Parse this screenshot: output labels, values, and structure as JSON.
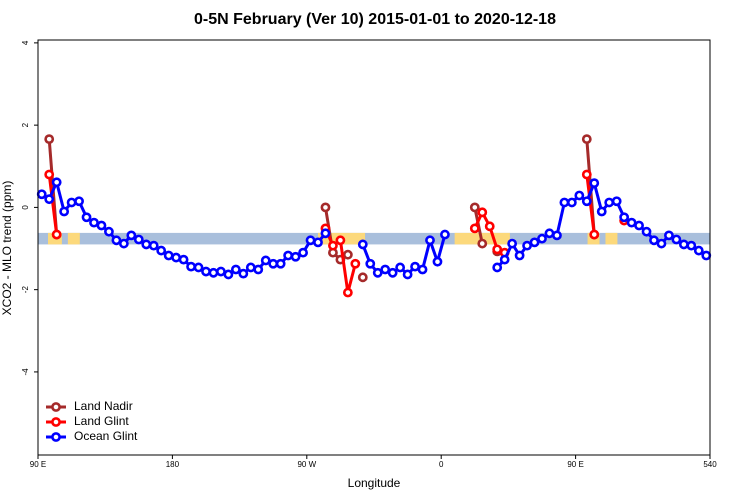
{
  "chart_data": {
    "type": "line",
    "title": "0-5N February (Ver 10)   2015-01-01 to 2020-12-18",
    "xlabel": "Longitude",
    "ylabel": "XCO2 - MLO trend (ppm)",
    "xlim": [
      90,
      540
    ],
    "ylim": [
      -6.02,
      4.07
    ],
    "xticks": [
      {
        "value": 90,
        "label": "90 E"
      },
      180,
      {
        "value": 270,
        "label": "90 W"
      },
      {
        "value": 360,
        "label": "0"
      },
      {
        "value": 450,
        "label": "90 E"
      },
      540
    ],
    "yticks": [
      -4,
      -2,
      0,
      2,
      4
    ],
    "legend": "bottomleft",
    "band": {
      "color": "#a9bfdc",
      "land_color": "#fcd97c",
      "ylim": [
        -0.9,
        -0.62
      ],
      "land_segments": [
        [
          96.7,
          106
        ],
        [
          110,
          118
        ],
        [
          277.5,
          309
        ],
        [
          369,
          406
        ],
        [
          458,
          466
        ],
        [
          470,
          478
        ]
      ]
    },
    "x": [
      92.5,
      97.5,
      102.5,
      107.5,
      112.5,
      117.5,
      122.5,
      127.5,
      132.5,
      137.5,
      142.5,
      147.5,
      152.5,
      157.5,
      162.5,
      167.5,
      172.5,
      177.5,
      182.5,
      187.5,
      192.5,
      197.5,
      202.5,
      207.5,
      212.5,
      217.5,
      222.5,
      227.5,
      232.5,
      237.5,
      242.5,
      247.5,
      252.5,
      257.5,
      262.5,
      267.5,
      272.5,
      277.5,
      282.5,
      287.5,
      292.5,
      297.5,
      302.5,
      307.5,
      312.5,
      317.5,
      322.5,
      327.5,
      332.5,
      337.5,
      342.5,
      347.5,
      352.5,
      357.5,
      362.5,
      367.5,
      372.5,
      377.5,
      382.5,
      387.5,
      392.5,
      397.5,
      402.5,
      407.5,
      412.5,
      417.5,
      422.5,
      427.5,
      432.5,
      437.5,
      442.5,
      447.5,
      452.5,
      457.5,
      462.5,
      467.5,
      472.5,
      477.5,
      482.5,
      487.5,
      492.5,
      497.5,
      502.5,
      507.5,
      512.5,
      517.5,
      522.5,
      527.5,
      532.5,
      537.5
    ],
    "series": [
      {
        "name": "Land Nadir",
        "color": "#a52a2a",
        "values": [
          null,
          1.66,
          -0.66,
          null,
          null,
          null,
          null,
          null,
          null,
          null,
          null,
          null,
          null,
          null,
          null,
          null,
          null,
          null,
          null,
          null,
          null,
          null,
          null,
          null,
          null,
          null,
          null,
          null,
          null,
          null,
          null,
          null,
          null,
          null,
          null,
          null,
          null,
          null,
          0,
          -1.1,
          -1.27,
          -1.15,
          null,
          -1.7,
          null,
          null,
          null,
          null,
          null,
          null,
          null,
          null,
          null,
          null,
          null,
          null,
          null,
          null,
          0,
          -0.88,
          null,
          -1.07,
          null,
          null,
          null,
          null,
          null,
          null,
          null,
          null,
          null,
          null,
          null,
          1.66,
          -0.66,
          null,
          null,
          null,
          null,
          null,
          null,
          null,
          null,
          null,
          null,
          null,
          null,
          null,
          null,
          null
        ]
      },
      {
        "name": "Land Glint",
        "color": "#ff0000",
        "values": [
          null,
          0.8,
          -0.66,
          null,
          null,
          null,
          null,
          null,
          null,
          null,
          null,
          null,
          null,
          null,
          null,
          null,
          null,
          null,
          null,
          null,
          null,
          null,
          null,
          null,
          null,
          null,
          null,
          null,
          null,
          null,
          null,
          null,
          null,
          null,
          null,
          null,
          null,
          null,
          -0.51,
          -0.93,
          -0.8,
          -2.07,
          -1.37,
          null,
          null,
          null,
          null,
          null,
          null,
          null,
          null,
          null,
          null,
          null,
          null,
          null,
          null,
          null,
          -0.51,
          -0.12,
          -0.46,
          -1.02,
          -1.1,
          null,
          null,
          null,
          null,
          null,
          null,
          null,
          null,
          null,
          null,
          0.8,
          -0.66,
          null,
          null,
          null,
          -0.32,
          null,
          null,
          null,
          null,
          null,
          null,
          null,
          null,
          null,
          null,
          null
        ]
      },
      {
        "name": "Ocean Glint",
        "color": "#0000ff",
        "values": [
          0.32,
          0.2,
          0.61,
          -0.1,
          0.12,
          0.15,
          -0.24,
          -0.37,
          -0.44,
          -0.59,
          -0.8,
          -0.88,
          -0.68,
          -0.78,
          -0.9,
          -0.93,
          -1.05,
          -1.17,
          -1.22,
          -1.27,
          -1.44,
          -1.46,
          -1.56,
          -1.59,
          -1.56,
          -1.63,
          -1.51,
          -1.61,
          -1.46,
          -1.51,
          -1.29,
          -1.37,
          -1.37,
          -1.17,
          -1.2,
          -1.1,
          -0.8,
          -0.85,
          -0.63,
          null,
          null,
          null,
          null,
          -0.9,
          -1.37,
          -1.59,
          -1.51,
          -1.59,
          -1.46,
          -1.63,
          -1.44,
          -1.51,
          -0.8,
          -1.32,
          -0.66,
          null,
          null,
          null,
          null,
          null,
          null,
          -1.46,
          -1.27,
          -0.88,
          -1.17,
          -0.93,
          -0.85,
          -0.76,
          -0.63,
          -0.68,
          0.12,
          0.12,
          0.29,
          0.15,
          0.59,
          -0.1,
          0.12,
          0.15,
          -0.24,
          -0.37,
          -0.44,
          -0.59,
          -0.8,
          -0.88,
          -0.68,
          -0.78,
          -0.9,
          -0.93,
          -1.05,
          -1.17
        ]
      }
    ]
  }
}
